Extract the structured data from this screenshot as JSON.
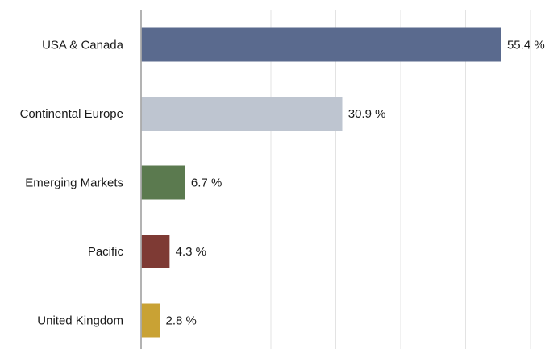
{
  "chart_data": {
    "type": "bar",
    "orientation": "horizontal",
    "categories": [
      "USA & Canada",
      "Continental Europe",
      "Emerging Markets",
      "Pacific",
      "United Kingdom"
    ],
    "values": [
      55.4,
      30.9,
      6.7,
      4.3,
      2.8
    ],
    "value_labels": [
      "55.4 %",
      "30.9 %",
      "6.7 %",
      "4.3 %",
      "2.8 %"
    ],
    "colors": [
      "#5a6a8e",
      "#bec5d0",
      "#5b7a4f",
      "#7e3a34",
      "#c9a234"
    ],
    "xlim": [
      0,
      60
    ],
    "grid": true,
    "legend": "none"
  }
}
